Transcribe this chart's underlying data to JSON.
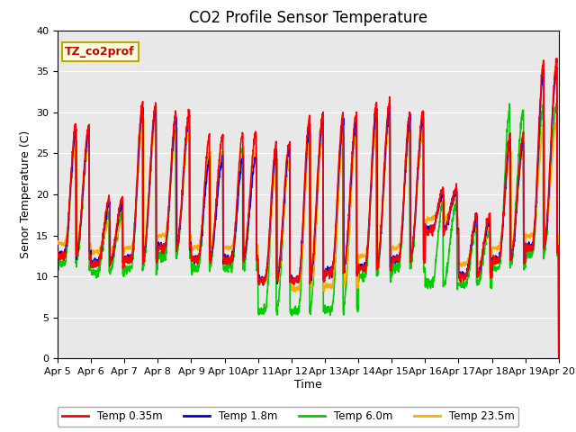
{
  "title": "CO2 Profile Sensor Temperature",
  "xlabel": "Time",
  "ylabel": "Senor Temperature (C)",
  "ylim": [
    0,
    40
  ],
  "xlim": [
    0,
    15
  ],
  "annotation_text": "TZ_co2prof",
  "annotation_color": "#cc0000",
  "annotation_bg": "#ffffdd",
  "annotation_border": "#bbaa00",
  "bg_color": "#e8e8e8",
  "fig_bg": "#ffffff",
  "line_colors": [
    "#ff0000",
    "#0000dd",
    "#00cc00",
    "#ffaa00"
  ],
  "line_labels": [
    "Temp 0.35m",
    "Temp 1.8m",
    "Temp 6.0m",
    "Temp 23.5m"
  ],
  "line_width": 1.2,
  "x_tick_labels": [
    "Apr 5",
    "Apr 6",
    "Apr 7",
    "Apr 8",
    "Apr 9",
    "Apr 10",
    "Apr 11",
    "Apr 12",
    "Apr 13",
    "Apr 14",
    "Apr 15",
    "Apr 16",
    "Apr 17",
    "Apr 18",
    "Apr 19",
    "Apr 20"
  ],
  "x_tick_positions": [
    0,
    1,
    2,
    3,
    4,
    5,
    6,
    7,
    8,
    9,
    10,
    11,
    12,
    13,
    14,
    15
  ],
  "y_ticks": [
    0,
    5,
    10,
    15,
    20,
    25,
    30,
    35,
    40
  ],
  "grid_color": "#ffffff",
  "title_fontsize": 12,
  "axis_label_fontsize": 9,
  "tick_fontsize": 8
}
